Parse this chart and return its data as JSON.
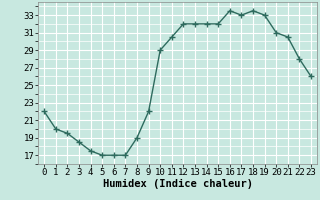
{
  "x": [
    0,
    1,
    2,
    3,
    4,
    5,
    6,
    7,
    8,
    9,
    10,
    11,
    12,
    13,
    14,
    15,
    16,
    17,
    18,
    19,
    20,
    21,
    22,
    23
  ],
  "y": [
    22,
    20,
    19.5,
    18.5,
    17.5,
    17,
    17,
    17,
    19,
    22,
    29,
    30.5,
    32,
    32,
    32,
    32,
    33.5,
    33,
    33.5,
    33,
    31,
    30.5,
    28,
    26
  ],
  "line_color": "#2e6b5e",
  "marker": "+",
  "marker_size": 4,
  "bg_color": "#c8e8e0",
  "grid_color": "#ffffff",
  "xlabel": "Humidex (Indice chaleur)",
  "xlabel_fontsize": 7.5,
  "xlim": [
    -0.5,
    23.5
  ],
  "ylim": [
    16,
    34.5
  ],
  "yticks": [
    17,
    19,
    21,
    23,
    25,
    27,
    29,
    31,
    33
  ],
  "xticks": [
    0,
    1,
    2,
    3,
    4,
    5,
    6,
    7,
    8,
    9,
    10,
    11,
    12,
    13,
    14,
    15,
    16,
    17,
    18,
    19,
    20,
    21,
    22,
    23
  ],
  "tick_fontsize": 6.5,
  "line_width": 1.0
}
